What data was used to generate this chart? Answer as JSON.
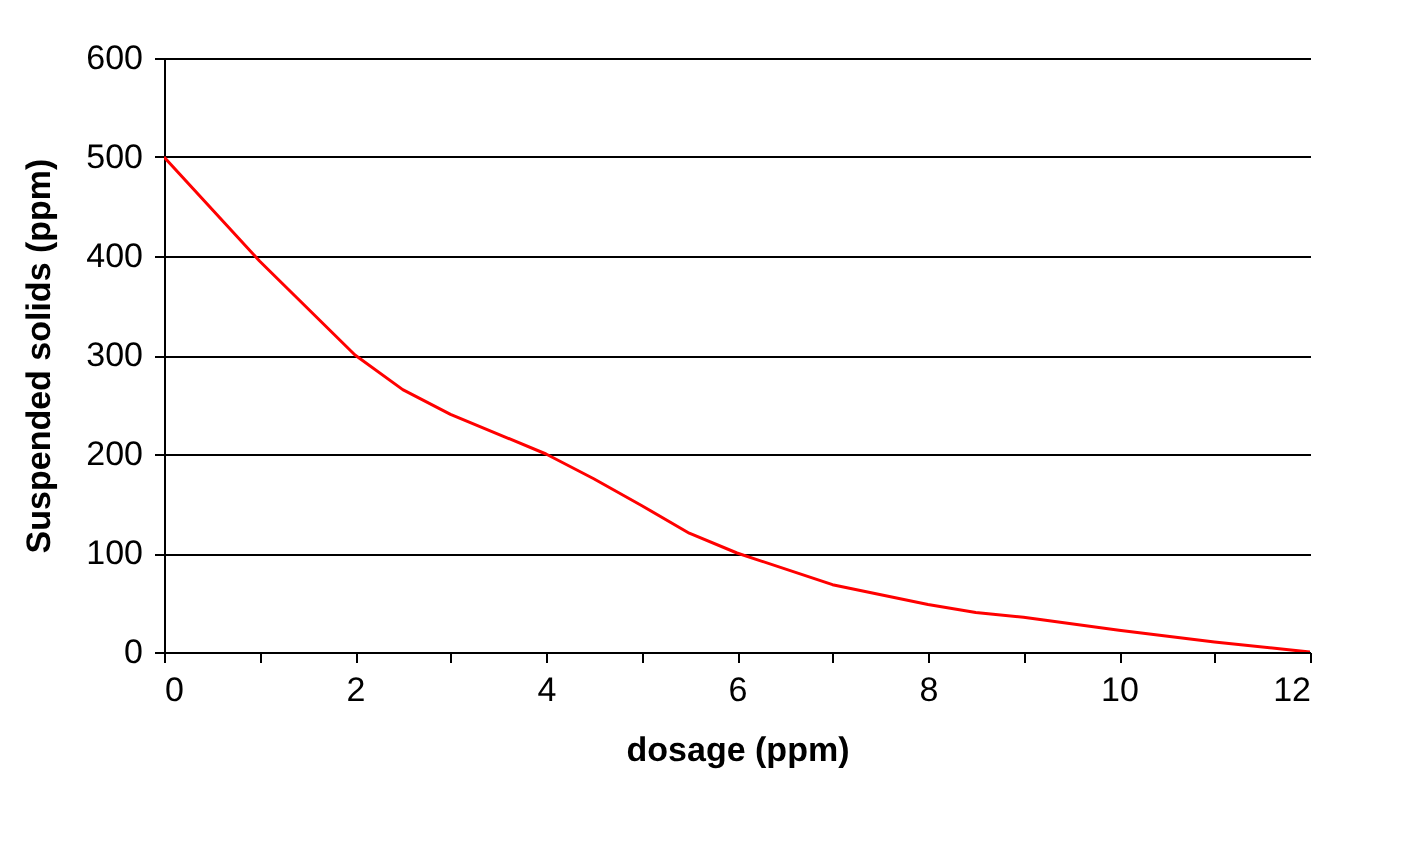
{
  "chart_data": {
    "type": "line",
    "xlabel": "dosage (ppm)",
    "ylabel": "Suspended solids (ppm)",
    "x": [
      0,
      1,
      2,
      2.5,
      3,
      4,
      4.5,
      5,
      5.5,
      6,
      7,
      8,
      8.5,
      9,
      10,
      11,
      12
    ],
    "series": [
      {
        "color": "#ff0000",
        "values": [
          500,
          395,
          300,
          265,
          240,
          200,
          175,
          148,
          120,
          100,
          68,
          48,
          40,
          35,
          22,
          10,
          0
        ]
      }
    ],
    "xlim": [
      0,
      12
    ],
    "xticks": [
      0,
      {
        "value": 1,
        "label": null
      },
      2,
      {
        "value": 3,
        "label": null
      },
      4,
      {
        "value": 5,
        "label": null
      },
      6,
      {
        "value": 7,
        "label": null
      },
      8,
      {
        "value": 9,
        "label": null
      },
      10,
      {
        "value": 11,
        "label": null
      },
      12
    ],
    "ylim": [
      0,
      600
    ],
    "yticks": [
      0,
      100,
      200,
      300,
      400,
      500,
      600
    ],
    "grid": "y",
    "marker": "none",
    "line_style": "solid"
  }
}
